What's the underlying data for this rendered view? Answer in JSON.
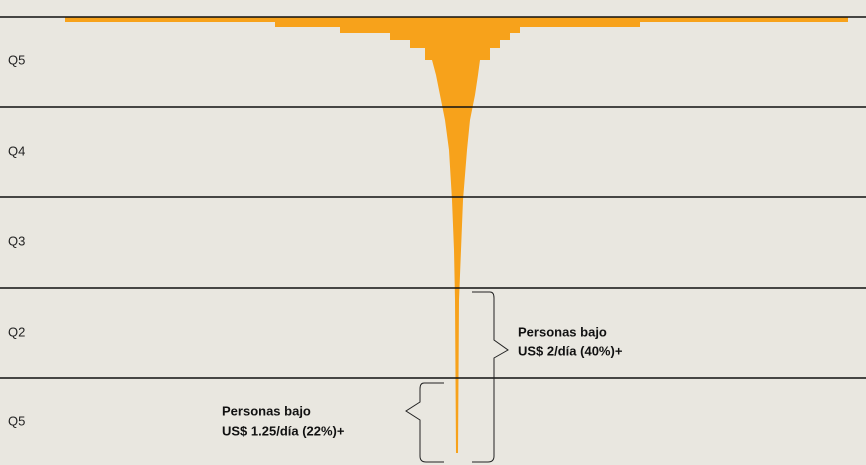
{
  "bands": [
    "Q5",
    "Q4",
    "Q3",
    "Q2",
    "Q5"
  ],
  "annotations": [
    {
      "lines": [
        "Personas bajo",
        "US$ 2/día (40%)+"
      ]
    },
    {
      "lines": [
        "Personas bajo",
        "US$ 1.25/día (22%)+"
      ]
    }
  ]
}
